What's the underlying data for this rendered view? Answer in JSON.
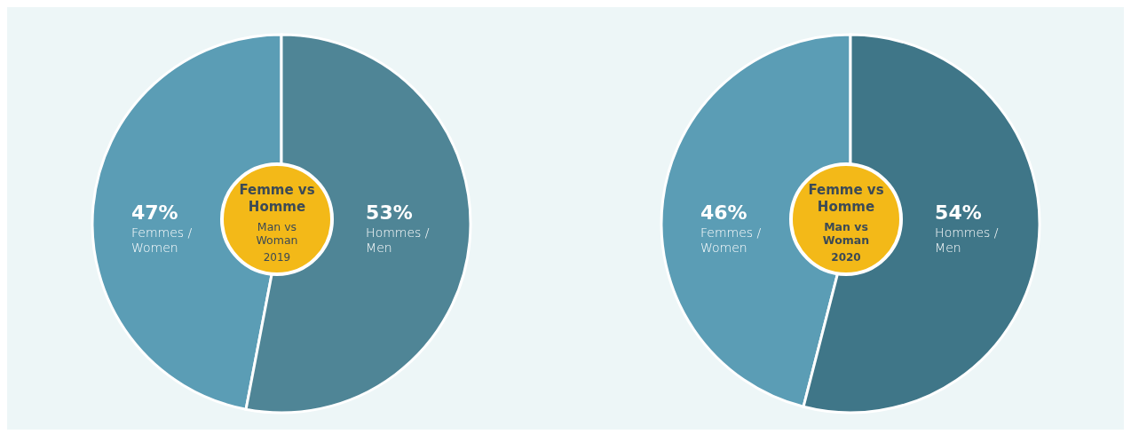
{
  "chart_data": [
    {
      "type": "pie",
      "title": "Femme vs Homme",
      "subtitle": "Man vs Woman",
      "annotations": [
        "2019"
      ],
      "categories": [
        "Femmes / Women",
        "Hommes / Men"
      ],
      "values": [
        47,
        53
      ],
      "value_labels": [
        "47%",
        "53%"
      ],
      "colors": [
        "#5b9db5",
        "#4f8596"
      ]
    },
    {
      "type": "pie",
      "title": "Femme vs Homme",
      "subtitle": "Man vs Woman",
      "annotations": [
        "2020"
      ],
      "categories": [
        "Femmes / Women",
        "Hommes / Men"
      ],
      "values": [
        46,
        54
      ],
      "value_labels": [
        "46%",
        "54%"
      ],
      "colors": [
        "#5b9db5",
        "#3f7688"
      ]
    }
  ]
}
